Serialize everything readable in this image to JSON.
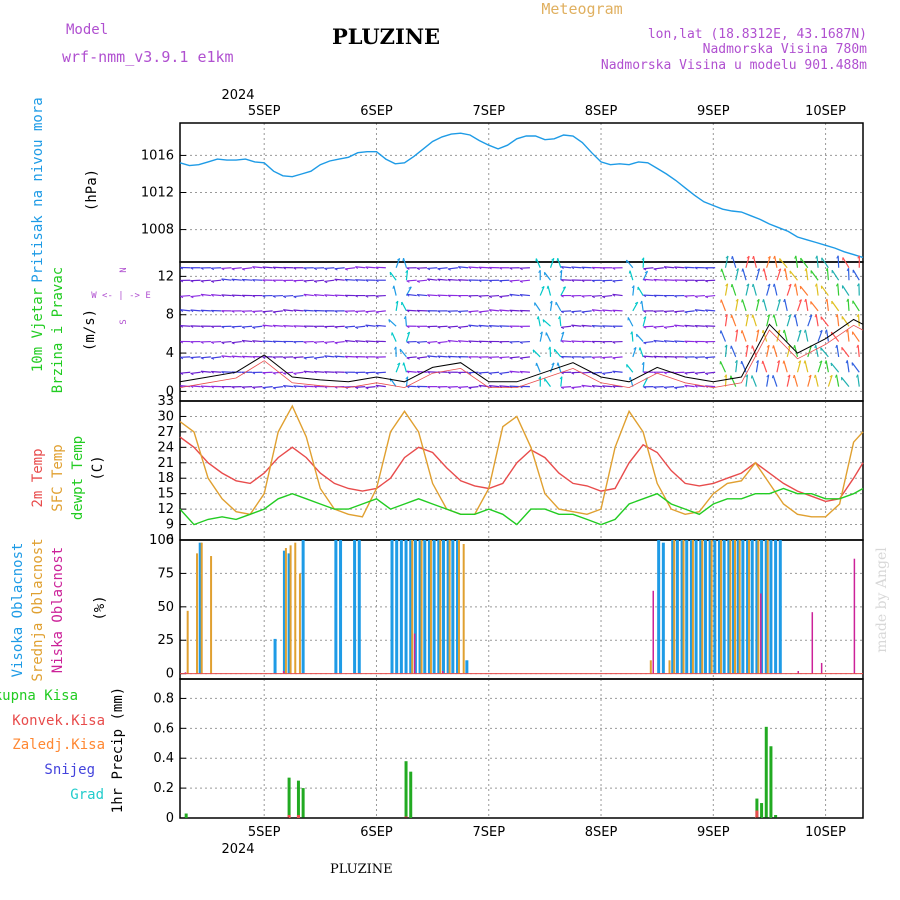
{
  "header": {
    "model_label": "Model",
    "model_name": "wrf-nmm_v3.9.1 e1km",
    "title": "PLUZINE",
    "meteogram_label": "Meteogram",
    "lonlat": "lon,lat (18.8312E, 43.1687N)",
    "elevation": "Nadmorska Visina 780m",
    "model_elevation": "Nadmorska Visina u modelu 901.488m",
    "footer_title": "PLUZINE",
    "credit": "made by Angel"
  },
  "colors": {
    "pressure": "#1e9be6",
    "temp2m": "#e84c4c",
    "sfc": "#e0a030",
    "dewpoint": "#22cc22",
    "high_cloud": "#1e9be6",
    "mid_cloud": "#e0a030",
    "low_cloud": "#cc2299",
    "total_precip": "#22aa22",
    "conv_precip": "#e84c4c",
    "frozen_precip": "#ff8833",
    "snow": "#4444dd",
    "hail": "#22cccc",
    "model_color": "#b050d0",
    "meteogram_color": "#e0b060"
  },
  "axis_time": {
    "year": "2024",
    "days": [
      "5SEP",
      "6SEP",
      "7SEP",
      "8SEP",
      "9SEP",
      "10SEP"
    ],
    "start_hour": 0,
    "end_hour": 146,
    "day_hours": [
      18,
      42,
      66,
      90,
      114,
      138
    ]
  },
  "panel_labels": {
    "pressure": [
      "Pritisak na nivou mora",
      "(hPa)"
    ],
    "wind": [
      "10m Vjetar",
      "Brzina i Pravac",
      "(m/s)"
    ],
    "wind_compass": [
      "N",
      "W <- | -> E",
      "S"
    ],
    "temp": [
      "2m Temp",
      "SFC Temp",
      "dewpt Temp",
      "(C)"
    ],
    "cloud": [
      "Visoka Oblacnost",
      "Srednja Oblacnost",
      "Niska Oblacnost",
      "(%)"
    ],
    "precip_legend": [
      "Ukupna Kisa",
      "Konvek.Kisa",
      "Zaledj.Kisa",
      "Snijeg",
      "Grad"
    ],
    "precip_unit": "1hr Precip (mm)"
  },
  "chart_data": [
    {
      "type": "line",
      "name": "pressure",
      "ylabel": "Pritisak na nivou mora (hPa)",
      "ylim": [
        1004.5,
        1019.5
      ],
      "yticks": [
        1008,
        1012,
        1016
      ],
      "x": [
        0,
        2,
        4,
        6,
        8,
        10,
        12,
        14,
        16,
        18,
        20,
        22,
        24,
        26,
        28,
        30,
        32,
        34,
        36,
        38,
        40,
        42,
        44,
        46,
        48,
        50,
        52,
        54,
        56,
        58,
        60,
        62,
        64,
        66,
        68,
        70,
        72,
        74,
        76,
        78,
        80,
        82,
        84,
        86,
        88,
        90,
        92,
        94,
        96,
        98,
        100,
        102,
        104,
        106,
        108,
        110,
        112,
        114,
        116,
        118,
        120,
        122,
        124,
        126,
        128,
        130,
        132,
        134,
        136,
        138,
        140,
        142,
        144,
        146
      ],
      "values": [
        1015.2,
        1014.9,
        1015.0,
        1015.3,
        1015.6,
        1015.5,
        1015.5,
        1015.6,
        1015.3,
        1015.2,
        1014.3,
        1013.8,
        1013.7,
        1014.0,
        1014.3,
        1015.0,
        1015.4,
        1015.6,
        1015.8,
        1016.3,
        1016.4,
        1016.4,
        1015.6,
        1015.1,
        1015.2,
        1015.9,
        1016.7,
        1017.5,
        1018.0,
        1018.3,
        1018.4,
        1018.2,
        1017.6,
        1017.1,
        1016.7,
        1017.1,
        1017.8,
        1018.1,
        1018.1,
        1017.7,
        1017.8,
        1018.2,
        1018.1,
        1017.4,
        1016.3,
        1015.3,
        1015.0,
        1015.1,
        1015.0,
        1015.3,
        1015.2,
        1014.6,
        1014.0,
        1013.3,
        1012.5,
        1011.7,
        1011.0,
        1010.6,
        1010.2,
        1010.0,
        1009.9,
        1009.5,
        1009.1,
        1008.6,
        1008.2,
        1007.8,
        1007.2,
        1006.9,
        1006.6,
        1006.3,
        1006.0,
        1005.6,
        1005.3,
        1005.0
      ]
    },
    {
      "type": "line",
      "name": "wind",
      "ylabel": "10m Vjetar Brzina i Pravac (m/s)",
      "ylim": [
        -1,
        13.5
      ],
      "yticks": [
        0,
        4,
        8,
        12
      ],
      "x": [
        0,
        6,
        12,
        18,
        24,
        30,
        36,
        42,
        48,
        54,
        60,
        66,
        72,
        78,
        84,
        90,
        96,
        102,
        108,
        114,
        120,
        126,
        132,
        138,
        144,
        146
      ],
      "values": [
        1.0,
        1.5,
        2.0,
        3.8,
        1.5,
        1.2,
        1.0,
        1.5,
        1.0,
        2.5,
        3.0,
        1.0,
        1.0,
        2.0,
        3.0,
        1.5,
        1.0,
        2.5,
        1.5,
        1.0,
        1.5,
        7.0,
        4.0,
        5.5,
        7.5,
        7.0
      ]
    },
    {
      "type": "line",
      "name": "temperature",
      "ylabel": "(C)",
      "ylim": [
        6,
        33
      ],
      "yticks": [
        6,
        9,
        12,
        15,
        18,
        21,
        24,
        27,
        30,
        33
      ],
      "x": [
        0,
        3,
        6,
        9,
        12,
        15,
        18,
        21,
        24,
        27,
        30,
        33,
        36,
        39,
        42,
        45,
        48,
        51,
        54,
        57,
        60,
        63,
        66,
        69,
        72,
        75,
        78,
        81,
        84,
        87,
        90,
        93,
        96,
        99,
        102,
        105,
        108,
        111,
        114,
        117,
        120,
        123,
        126,
        129,
        132,
        135,
        138,
        141,
        144,
        146
      ],
      "series": [
        {
          "name": "2m Temp",
          "values": [
            26,
            24,
            21,
            19,
            17.5,
            17,
            19,
            22,
            24,
            22,
            19,
            17,
            16,
            15.5,
            16,
            18,
            22,
            24,
            23,
            20,
            17.5,
            16.5,
            16,
            17,
            21,
            23.5,
            22,
            19,
            17,
            16.5,
            15.5,
            16,
            21,
            24.5,
            23,
            19.5,
            17,
            16.5,
            17,
            18,
            19,
            21,
            19,
            17,
            15.5,
            14.5,
            13.5,
            14,
            18,
            21
          ]
        },
        {
          "name": "SFC Temp",
          "values": [
            29,
            27,
            18,
            14,
            11.5,
            11,
            15,
            27,
            32,
            26,
            16,
            12,
            11,
            10.5,
            16,
            27,
            31,
            27,
            17,
            12,
            11,
            11,
            16,
            28,
            30,
            24,
            15,
            12,
            11.5,
            11,
            12,
            24,
            31,
            27,
            17,
            12,
            11,
            11.5,
            15,
            17,
            17.5,
            21,
            17,
            13,
            11,
            10.5,
            10.5,
            13,
            25,
            27
          ]
        },
        {
          "name": "dewpt Temp",
          "values": [
            12,
            9,
            10,
            10.5,
            10,
            11,
            12,
            14,
            15,
            14,
            13,
            12,
            12,
            13,
            14,
            12,
            13,
            14,
            13,
            12,
            11,
            11,
            12,
            11,
            9,
            12,
            12,
            11,
            11,
            10,
            9,
            10,
            13,
            14,
            15,
            13,
            12,
            11,
            13,
            14,
            14,
            15,
            15,
            16,
            15,
            15,
            14,
            14,
            15,
            16
          ]
        }
      ]
    },
    {
      "type": "bar",
      "name": "cloud",
      "ylabel": "(%)",
      "ylim": [
        -4,
        100
      ],
      "yticks": [
        0,
        25,
        50,
        75,
        100
      ],
      "series": [
        {
          "name": "Visoka Oblacnost",
          "x": [
            4,
            20,
            22,
            23,
            26,
            33,
            34,
            37,
            38,
            45,
            46,
            47,
            48,
            49,
            50,
            51,
            52,
            53,
            54,
            55,
            56,
            57,
            58,
            59,
            61,
            102,
            103,
            105,
            106,
            107,
            108,
            109,
            110,
            111,
            112,
            113,
            114,
            115,
            116,
            117,
            118,
            119,
            120,
            121,
            122,
            123,
            124,
            125,
            126,
            127,
            128
          ],
          "values": [
            98,
            26,
            92,
            90,
            100,
            100,
            100,
            100,
            100,
            100,
            100,
            100,
            100,
            100,
            100,
            100,
            100,
            100,
            100,
            100,
            100,
            100,
            100,
            100,
            10,
            100,
            98,
            100,
            100,
            100,
            100,
            100,
            100,
            100,
            100,
            100,
            100,
            100,
            100,
            100,
            100,
            100,
            100,
            100,
            100,
            100,
            100,
            100,
            100,
            100,
            100
          ]
        },
        {
          "name": "Srednja Oblacnost",
          "x": [
            1,
            3,
            4,
            6,
            22,
            23,
            24,
            25,
            49,
            51,
            53,
            55,
            57,
            59,
            60,
            100,
            104,
            105,
            107,
            109,
            111,
            113,
            115,
            117,
            118,
            119,
            121,
            123,
            125
          ],
          "values": [
            47,
            90,
            98,
            88,
            94,
            96,
            98,
            75,
            100,
            100,
            100,
            100,
            100,
            100,
            97,
            10,
            10,
            100,
            100,
            100,
            100,
            100,
            100,
            100,
            100,
            100,
            100,
            100,
            100
          ]
        },
        {
          "name": "Niska Oblacnost",
          "x": [
            1,
            22,
            50,
            56,
            101,
            124,
            132,
            135,
            137,
            144
          ],
          "values": [
            1,
            2,
            30,
            2,
            62,
            60,
            2,
            46,
            8,
            86
          ]
        }
      ]
    },
    {
      "type": "bar",
      "name": "precip",
      "ylabel": "1hr Precip (mm)",
      "ylim": [
        0,
        0.93
      ],
      "yticks": [
        0,
        0.2,
        0.4,
        0.6,
        0.8
      ],
      "series": [
        {
          "name": "Ukupna Kisa",
          "x": [
            1,
            23,
            25,
            26,
            48,
            49,
            123,
            124,
            125,
            126,
            127
          ],
          "values": [
            0.03,
            0.27,
            0.25,
            0.2,
            0.38,
            0.31,
            0.13,
            0.1,
            0.61,
            0.48,
            0.02
          ]
        },
        {
          "name": "Konvek.Kisa",
          "x": [
            23,
            25,
            48,
            123
          ],
          "values": [
            0.02,
            0.02,
            0.01,
            0.05
          ]
        }
      ]
    }
  ]
}
